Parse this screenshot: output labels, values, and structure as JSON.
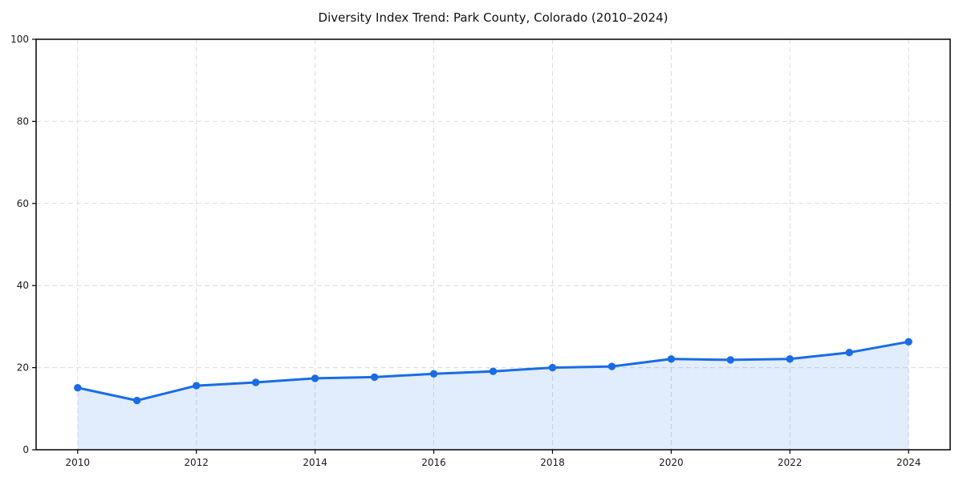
{
  "chart_data": {
    "type": "area",
    "title": "Diversity Index Trend: Park County, Colorado (2010–2024)",
    "xlabel": "",
    "ylabel": "",
    "x": [
      2010,
      2011,
      2012,
      2013,
      2014,
      2015,
      2016,
      2017,
      2018,
      2019,
      2020,
      2021,
      2022,
      2023,
      2024
    ],
    "series": [
      {
        "name": "Diversity Index",
        "values": [
          15.1,
          12.0,
          15.6,
          16.4,
          17.4,
          17.7,
          18.5,
          19.1,
          20.0,
          20.3,
          22.1,
          21.9,
          22.1,
          23.7,
          26.3
        ]
      }
    ],
    "xlim": [
      2009.3,
      2024.7
    ],
    "ylim": [
      0,
      100
    ],
    "x_ticks": [
      2010,
      2012,
      2014,
      2016,
      2018,
      2020,
      2022,
      2024
    ],
    "x_tick_labels": [
      "2010",
      "2012",
      "2014",
      "2016",
      "2018",
      "2020",
      "2022",
      "2024"
    ],
    "y_ticks": [
      0,
      20,
      40,
      60,
      80,
      100
    ],
    "y_tick_labels": [
      "0",
      "20",
      "40",
      "60",
      "80",
      "100"
    ],
    "grid": true,
    "legend": "none",
    "colors": {
      "line": "#1a6ce4",
      "marker": "#1a6ce4",
      "fill": "rgba(26,108,228,0.13)",
      "grid": "#dcdcdc",
      "spine": "#000000",
      "text": "#1a1a1a",
      "background": "#ffffff"
    }
  }
}
